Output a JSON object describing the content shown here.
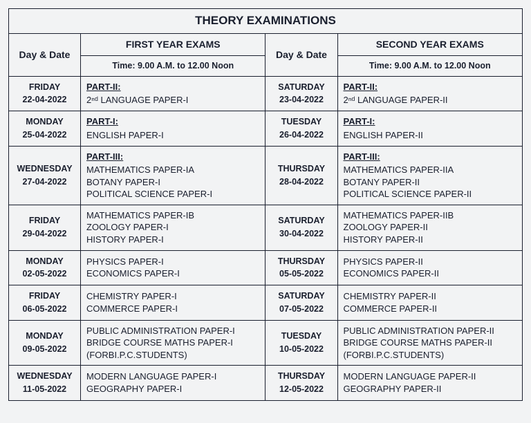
{
  "title": "THEORY EXAMINATIONS",
  "headers": {
    "dayDate": "Day & Date",
    "firstYear": "FIRST YEAR EXAMS",
    "secondYear": "SECOND YEAR EXAMS",
    "time": "Time: 9.00 A.M. to 12.00 Noon"
  },
  "rows": [
    {
      "d1_day": "FRIDAY",
      "d1_date": "22-04-2022",
      "s1_part": "PART-II:",
      "s1_lines": "2ⁿᵈ LANGUAGE PAPER-I",
      "d2_day": "SATURDAY",
      "d2_date": "23-04-2022",
      "s2_part": "PART-II:",
      "s2_lines": "2ⁿᵈ LANGUAGE PAPER-II"
    },
    {
      "d1_day": "MONDAY",
      "d1_date": "25-04-2022",
      "s1_part": "PART-I:",
      "s1_lines": "ENGLISH PAPER-I",
      "d2_day": "TUESDAY",
      "d2_date": "26-04-2022",
      "s2_part": "PART-I:",
      "s2_lines": "ENGLISH PAPER-II"
    },
    {
      "d1_day": "WEDNESDAY",
      "d1_date": "27-04-2022",
      "s1_part": "PART-III:",
      "s1_lines": "MATHEMATICS PAPER-IA\nBOTANY PAPER-I\nPOLITICAL SCIENCE PAPER-I",
      "d2_day": "THURSDAY",
      "d2_date": "28-04-2022",
      "s2_part": "PART-III:",
      "s2_lines": "MATHEMATICS PAPER-IIA\nBOTANY PAPER-II\nPOLITICAL SCIENCE PAPER-II"
    },
    {
      "d1_day": "FRIDAY",
      "d1_date": "29-04-2022",
      "s1_part": "",
      "s1_lines": "MATHEMATICS PAPER-IB\nZOOLOGY PAPER-I\nHISTORY PAPER-I",
      "d2_day": "SATURDAY",
      "d2_date": "30-04-2022",
      "s2_part": "",
      "s2_lines": "MATHEMATICS PAPER-IIB\nZOOLOGY PAPER-II\nHISTORY PAPER-II"
    },
    {
      "d1_day": "MONDAY",
      "d1_date": "02-05-2022",
      "s1_part": "",
      "s1_lines": "PHYSICS PAPER-I\nECONOMICS PAPER-I",
      "d2_day": "THURSDAY",
      "d2_date": "05-05-2022",
      "s2_part": "",
      "s2_lines": "PHYSICS PAPER-II\nECONOMICS PAPER-II"
    },
    {
      "d1_day": "FRIDAY",
      "d1_date": "06-05-2022",
      "s1_part": "",
      "s1_lines": "CHEMISTRY PAPER-I\nCOMMERCE PAPER-I",
      "d2_day": "SATURDAY",
      "d2_date": "07-05-2022",
      "s2_part": "",
      "s2_lines": "CHEMISTRY PAPER-II\nCOMMERCE PAPER-II"
    },
    {
      "d1_day": "MONDAY",
      "d1_date": "09-05-2022",
      "s1_part": "",
      "s1_lines": "PUBLIC ADMINISTRATION PAPER-I\nBRIDGE COURSE MATHS PAPER-I\n(FORBI.P.C.STUDENTS)",
      "d2_day": "TUESDAY",
      "d2_date": "10-05-2022",
      "s2_part": "",
      "s2_lines": "PUBLIC ADMINISTRATION PAPER-II\nBRIDGE COURSE MATHS PAPER-II\n(FORBI.P.C.STUDENTS)"
    },
    {
      "d1_day": "WEDNESDAY",
      "d1_date": "11-05-2022",
      "s1_part": "",
      "s1_lines": "MODERN LANGUAGE PAPER-I\nGEOGRAPHY PAPER-I",
      "d2_day": "THURSDAY",
      "d2_date": "12-05-2022",
      "s2_part": "",
      "s2_lines": "MODERN LANGUAGE PAPER-II\nGEOGRAPHY PAPER-II"
    }
  ]
}
